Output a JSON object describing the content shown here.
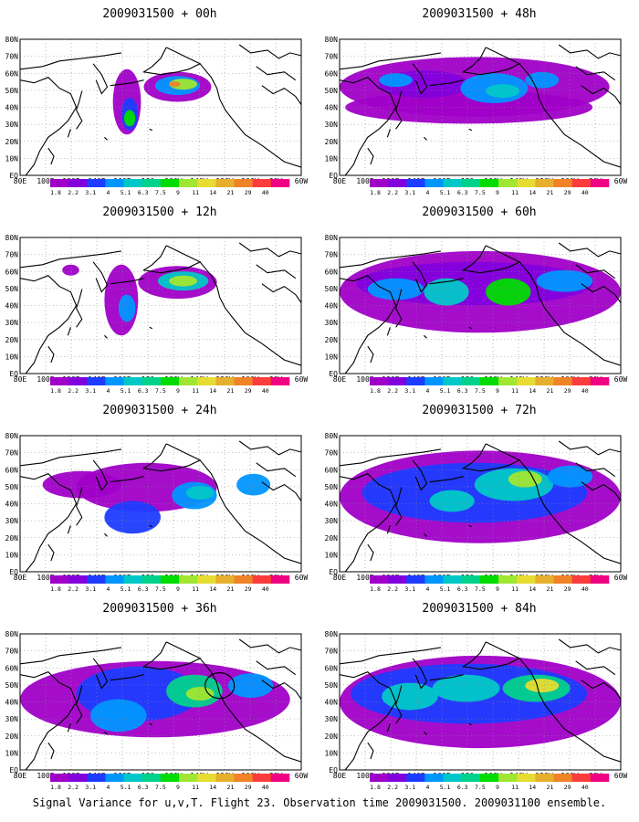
{
  "caption": "Signal Variance for u,v,T. Flight 23. Observation time 2009031500. 2009031100 ensemble.",
  "lat_labels": [
    "80N",
    "70N",
    "60N",
    "50N",
    "40N",
    "30N",
    "20N",
    "10N",
    "EQ"
  ],
  "lon_labels": [
    "80E",
    "100E",
    "120E",
    "140E",
    "160E",
    "180",
    "160W",
    "140W",
    "120W",
    "100W",
    "80W",
    "60W"
  ],
  "legend": {
    "levels": [
      "1.8",
      "2.2",
      "3.1",
      "4",
      "5.1",
      "6.3",
      "7.5",
      "9",
      "11",
      "14",
      "21",
      "29",
      "40"
    ],
    "colors": [
      "#a000c8",
      "#8200dc",
      "#1e3cff",
      "#0096ff",
      "#00c8c8",
      "#00d28c",
      "#00dc00",
      "#a0e632",
      "#e6dc32",
      "#e6af2d",
      "#f08228",
      "#fa3c3c",
      "#f00082"
    ]
  },
  "panels": [
    {
      "id": "p00",
      "title": "2009031500 + 00h"
    },
    {
      "id": "p48",
      "title": "2009031500 + 48h"
    },
    {
      "id": "p12",
      "title": "2009031500 + 12h"
    },
    {
      "id": "p60",
      "title": "2009031500 + 60h"
    },
    {
      "id": "p24",
      "title": "2009031500 + 24h"
    },
    {
      "id": "p72",
      "title": "2009031500 + 72h"
    },
    {
      "id": "p36",
      "title": "2009031500 + 36h"
    },
    {
      "id": "p84",
      "title": "2009031500 + 84h"
    }
  ]
}
